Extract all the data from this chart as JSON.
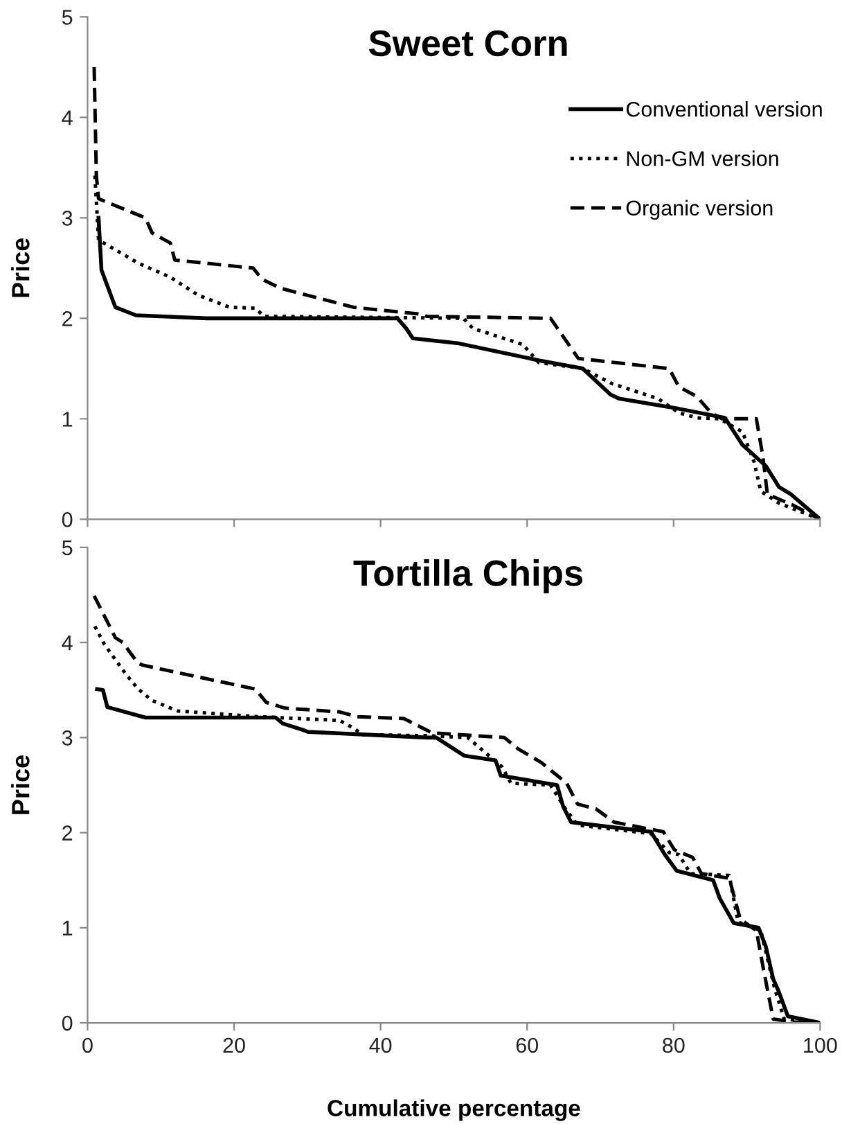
{
  "chart_data": [
    {
      "type": "line",
      "title": "Sweet Corn",
      "ylabel": "Price",
      "xlim": [
        0,
        100
      ],
      "xticks": [
        0,
        20,
        40,
        60,
        80,
        100
      ],
      "ylim": [
        0,
        5
      ],
      "yticks": [
        0,
        1,
        2,
        3,
        4,
        5
      ],
      "tick_labels": "y",
      "legend": "top right",
      "grid": false,
      "series": [
        {
          "name": "Conventional version",
          "color": "#000000",
          "line_style": "solid",
          "x": [
            1.5,
            1.9,
            3.8,
            6.6,
            16.3,
            42.3,
            43.5,
            44.4,
            50.7,
            61.7,
            67.6,
            71.4,
            72.6,
            80.7,
            87,
            89.4,
            92.6,
            94.4,
            96,
            100
          ],
          "values": [
            3.0,
            2.48,
            2.11,
            2.03,
            2.0,
            2.0,
            1.9,
            1.8,
            1.75,
            1.58,
            1.5,
            1.24,
            1.2,
            1.1,
            1.01,
            0.74,
            0.53,
            0.32,
            0.25,
            0
          ]
        },
        {
          "name": "Non-GM version",
          "color": "#000000",
          "line_style": "dotted",
          "x": [
            1,
            1.5,
            6.9,
            11.3,
            15.1,
            19.4,
            22.9,
            24.1,
            51.3,
            52.6,
            59.4,
            61.6,
            67.6,
            71.6,
            77.9,
            80.7,
            83.2,
            86.3,
            89.4,
            91,
            91.9,
            94.4,
            100
          ],
          "values": [
            3.42,
            2.78,
            2.55,
            2.41,
            2.23,
            2.11,
            2.1,
            2.02,
            2.0,
            1.9,
            1.74,
            1.56,
            1.5,
            1.35,
            1.2,
            1.06,
            1.01,
            1.0,
            0.87,
            0.57,
            0.28,
            0.16,
            0
          ]
        },
        {
          "name": "Organic version",
          "color": "#000000",
          "line_style": "dashed",
          "x": [
            0.9,
            1.2,
            1.5,
            7.9,
            8.8,
            11.3,
            11.9,
            22.6,
            23.8,
            26.3,
            36.3,
            45.7,
            46.3,
            63.2,
            67,
            79.4,
            80.7,
            83.2,
            85.1,
            86.6,
            91.3,
            92.2,
            92.8,
            96.3,
            100
          ],
          "values": [
            4.5,
            3.42,
            3.19,
            3.0,
            2.85,
            2.75,
            2.58,
            2.5,
            2.39,
            2.3,
            2.11,
            2.04,
            2.02,
            2.0,
            1.6,
            1.5,
            1.32,
            1.22,
            1.06,
            1.0,
            1.0,
            0.62,
            0.25,
            0.14,
            0
          ]
        }
      ]
    },
    {
      "type": "line",
      "title": "Tortilla Chips",
      "ylabel": "Price",
      "xlabel": "Cumulative percentage",
      "xlim": [
        0,
        100
      ],
      "xticks": [
        0,
        20,
        40,
        60,
        80,
        100
      ],
      "ylim": [
        0,
        5
      ],
      "yticks": [
        0,
        1,
        2,
        3,
        4,
        5
      ],
      "grid": false,
      "series": [
        {
          "color": "#000000",
          "line_style": "solid",
          "x": [
            1.3,
            2.1,
            2.7,
            7.9,
            25.7,
            26.6,
            29.4,
            30.1,
            46.3,
            47.6,
            51.4,
            55.7,
            56.4,
            64.1,
            64.9,
            66,
            76.9,
            78.8,
            80.4,
            85.4,
            86.3,
            88.2,
            91.6,
            92.6,
            93.6,
            94.3,
            95.6,
            100
          ],
          "values": [
            3.51,
            3.5,
            3.32,
            3.21,
            3.21,
            3.15,
            3.08,
            3.06,
            3.0,
            3.0,
            2.81,
            2.76,
            2.6,
            2.5,
            2.28,
            2.11,
            2.01,
            1.77,
            1.6,
            1.5,
            1.31,
            1.05,
            1.0,
            0.8,
            0.46,
            0.34,
            0.07,
            0
          ]
        },
        {
          "color": "#000000",
          "line_style": "dotted",
          "x": [
            1,
            2.3,
            5.1,
            6.9,
            8.8,
            12.3,
            23.2,
            34.4,
            36.3,
            37.6,
            46.3,
            51.9,
            56.6,
            57.8,
            63.2,
            65.4,
            66.9,
            76.9,
            79.4,
            80.7,
            82.3,
            87.6,
            88.8,
            91.9,
            93.8,
            95.1,
            100
          ],
          "values": [
            4.17,
            3.98,
            3.68,
            3.51,
            3.39,
            3.28,
            3.22,
            3.18,
            3.1,
            3.03,
            3.02,
            3.0,
            2.69,
            2.52,
            2.5,
            2.23,
            2.08,
            1.99,
            1.79,
            1.77,
            1.57,
            1.55,
            1.06,
            0.97,
            0.36,
            0.04,
            0
          ]
        },
        {
          "color": "#000000",
          "line_style": "dashed",
          "x": [
            0.9,
            3.8,
            4.8,
            6.9,
            7.6,
            22.9,
            24.4,
            26.9,
            34.4,
            36.8,
            43.2,
            47,
            56.9,
            58.8,
            61.9,
            65.4,
            66.9,
            69.4,
            71.9,
            78.6,
            80.1,
            82.6,
            83.8,
            87.6,
            89.1,
            91.3,
            92.3,
            93.6,
            96.3,
            100
          ],
          "values": [
            4.49,
            4.05,
            4.0,
            3.78,
            3.76,
            3.51,
            3.37,
            3.31,
            3.27,
            3.22,
            3.2,
            3.05,
            3.0,
            2.88,
            2.74,
            2.52,
            2.3,
            2.25,
            2.11,
            2.01,
            1.82,
            1.74,
            1.57,
            1.52,
            1.09,
            0.97,
            0.55,
            0.04,
            0.01,
            0
          ]
        }
      ]
    }
  ]
}
